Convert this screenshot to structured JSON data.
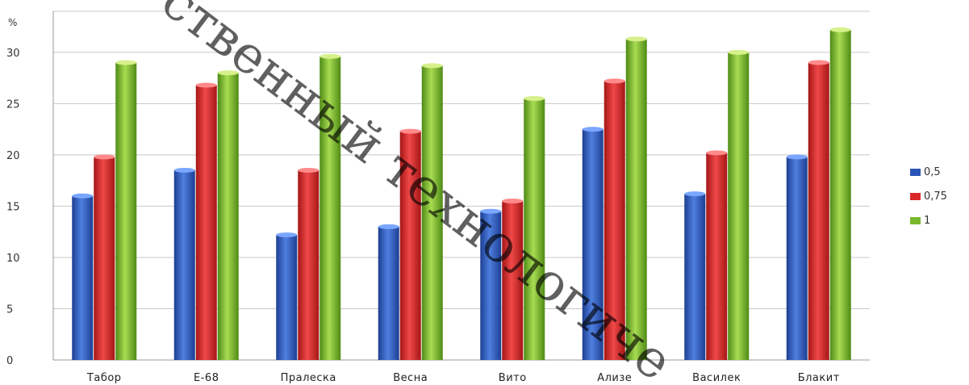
{
  "chart_data": {
    "type": "bar",
    "unit_label": "%",
    "categories": [
      "Табор",
      "Е-68",
      "Пралеска",
      "Весна",
      "Вито",
      "Ализе",
      "Василек",
      "Блакит"
    ],
    "series": [
      {
        "name": "0,5",
        "color": "#2a55b8",
        "values": [
          16,
          18.5,
          12.2,
          13,
          14.5,
          22.5,
          16.2,
          19.8
        ]
      },
      {
        "name": "0,75",
        "color": "#d82828",
        "values": [
          19.8,
          26.8,
          18.5,
          22.3,
          15.5,
          27.2,
          20.2,
          29
        ]
      },
      {
        "name": "1",
        "color": "#79b82c",
        "values": [
          29,
          28,
          29.6,
          28.7,
          25.5,
          31.3,
          30,
          32.2
        ]
      }
    ],
    "yticks": [
      0,
      5,
      10,
      15,
      20,
      25,
      30
    ],
    "ylim": [
      0,
      34
    ],
    "grid": true,
    "legend_position": "right",
    "watermark": "ственный технологиче"
  }
}
